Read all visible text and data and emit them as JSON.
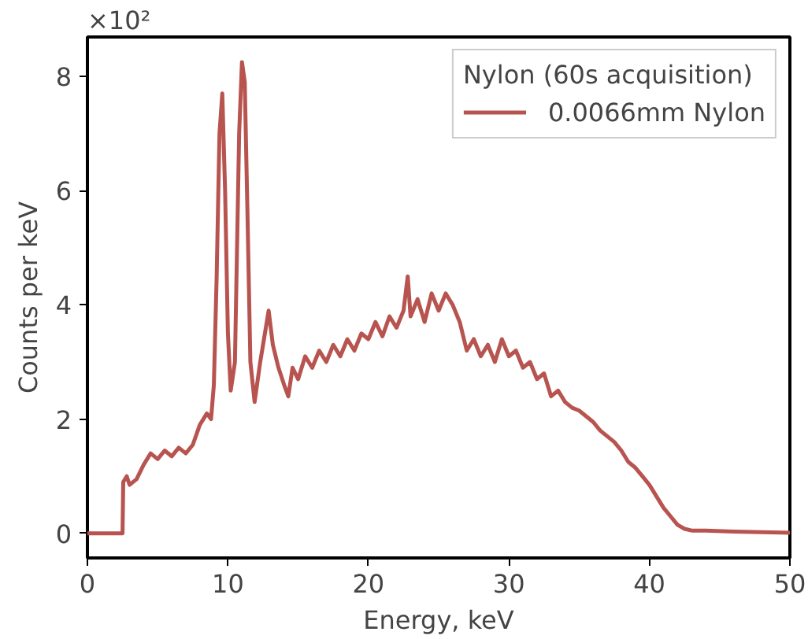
{
  "chart_data": {
    "type": "line",
    "xlabel": "Energy, keV",
    "ylabel": "Counts per keV",
    "legend_title": "Nylon (60s acquisition)",
    "legend": "top right",
    "grid": false,
    "line_style": "solid",
    "xlim": [
      0,
      50
    ],
    "xticks": [
      0,
      10,
      20,
      30,
      40,
      50
    ],
    "ylim": [
      -0.43,
      8.69
    ],
    "yticks": [
      0,
      2,
      4,
      6,
      8
    ],
    "annotations": [
      "×10²"
    ],
    "series": [
      {
        "name": "0.0066mm Nylon",
        "color": "#b85450",
        "x": [
          0,
          2.5,
          2.55,
          2.8,
          3,
          3.5,
          4,
          4.5,
          5,
          5.5,
          6,
          6.5,
          7,
          7.5,
          8,
          8.5,
          8.8,
          9,
          9.2,
          9.4,
          9.6,
          9.8,
          10,
          10.2,
          10.5,
          10.8,
          11,
          11.2,
          11.4,
          11.6,
          11.9,
          12.3,
          12.7,
          12.9,
          13.2,
          13.6,
          14,
          14.3,
          14.6,
          15,
          15.5,
          16,
          16.5,
          17,
          17.5,
          18,
          18.5,
          19,
          19.5,
          20,
          20.5,
          21,
          21.5,
          22,
          22.5,
          22.8,
          23,
          23.5,
          24,
          24.5,
          25,
          25.5,
          26,
          26.5,
          27,
          27.5,
          28,
          28.5,
          29,
          29.5,
          30,
          30.5,
          31,
          31.5,
          32,
          32.5,
          33,
          33.5,
          34,
          34.5,
          35,
          35.5,
          36,
          36.5,
          37,
          37.5,
          38,
          38.5,
          39,
          39.5,
          40,
          40.5,
          41,
          41.5,
          42,
          42.5,
          43,
          44,
          46,
          48,
          50
        ],
        "values": [
          0,
          0,
          0.9,
          1.0,
          0.85,
          0.95,
          1.2,
          1.4,
          1.3,
          1.45,
          1.35,
          1.5,
          1.4,
          1.55,
          1.9,
          2.1,
          2.0,
          2.6,
          4.5,
          7.0,
          7.7,
          6.0,
          3.5,
          2.5,
          3.0,
          7.0,
          8.25,
          7.9,
          5.5,
          3.0,
          2.3,
          3.0,
          3.6,
          3.9,
          3.3,
          2.9,
          2.6,
          2.4,
          2.9,
          2.7,
          3.1,
          2.9,
          3.2,
          3.0,
          3.3,
          3.1,
          3.4,
          3.2,
          3.5,
          3.4,
          3.7,
          3.45,
          3.8,
          3.6,
          3.9,
          4.5,
          3.8,
          4.1,
          3.7,
          4.2,
          3.9,
          4.2,
          4.0,
          3.7,
          3.2,
          3.4,
          3.1,
          3.3,
          3.0,
          3.4,
          3.1,
          3.2,
          2.9,
          3.0,
          2.7,
          2.8,
          2.4,
          2.5,
          2.3,
          2.2,
          2.15,
          2.05,
          1.95,
          1.8,
          1.7,
          1.6,
          1.45,
          1.25,
          1.15,
          1.0,
          0.85,
          0.65,
          0.45,
          0.3,
          0.15,
          0.08,
          0.05,
          0.05,
          0.03,
          0.02,
          0.01
        ]
      }
    ]
  }
}
